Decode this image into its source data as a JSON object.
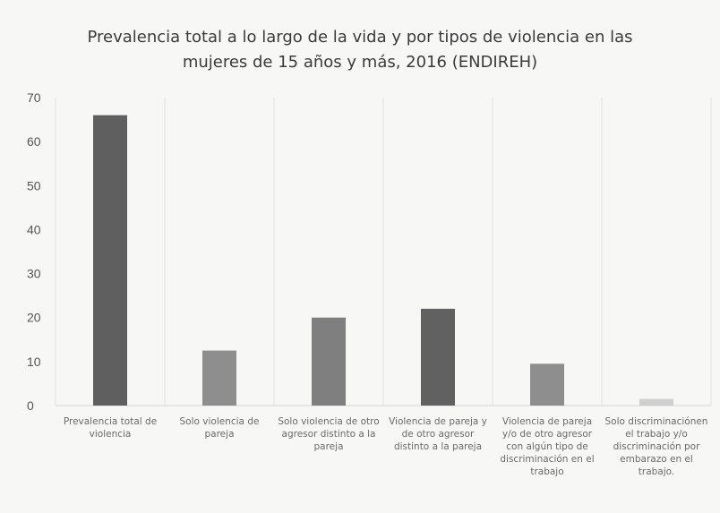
{
  "chart_data": {
    "type": "bar",
    "title_lines": [
      "Prevalencia total a lo largo de la vida y por tipos de violencia en las",
      "mujeres de 15 años y más, 2016 (ENDIREH)"
    ],
    "categories": [
      "Prevalencia total de violencia",
      "Solo violencia de pareja",
      "Solo violencia de otro agresor distinto a la pareja",
      "Violencia de pareja y de otro agresor distinto a la pareja",
      "Violencia de pareja y/o de otro agresor con algún tipo de discriminación en el trabajo",
      "Solo discriminaciónen el trabajo y/o discriminación por embarazo en el trabajo."
    ],
    "values": [
      66,
      12.5,
      20,
      22,
      9.5,
      1.5
    ],
    "bar_colors": [
      "#5f5f5f",
      "#8e8e8e",
      "#7f7f7f",
      "#616161",
      "#8e8e8e",
      "#cfcfcf"
    ],
    "ylim": [
      0,
      70
    ],
    "yticks": [
      "0",
      "10",
      "20",
      "30",
      "40",
      "50",
      "60",
      "70"
    ],
    "grid": "vertical-separators",
    "xlabel": "",
    "ylabel": ""
  }
}
